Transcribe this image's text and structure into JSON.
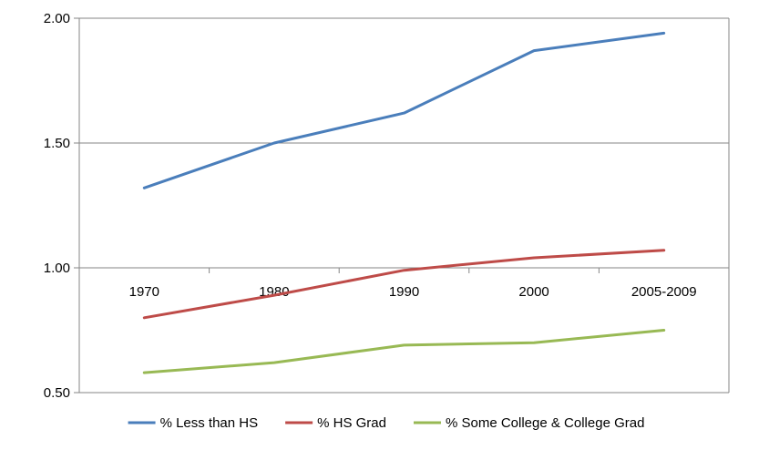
{
  "chart_data": {
    "type": "line",
    "categories": [
      "1970",
      "1980",
      "1990",
      "2000",
      "2005-2009"
    ],
    "series": [
      {
        "name": "% Less than HS",
        "color": "#4a7ebb",
        "values": [
          1.32,
          1.5,
          1.62,
          1.87,
          1.94
        ]
      },
      {
        "name": "% HS Grad",
        "color": "#be4b48",
        "values": [
          0.8,
          0.89,
          0.99,
          1.04,
          1.07
        ]
      },
      {
        "name": "% Some College & College Grad",
        "color": "#98b954",
        "values": [
          0.58,
          0.62,
          0.69,
          0.7,
          0.75
        ]
      }
    ],
    "y_ticks": [
      "0.50",
      "1.00",
      "1.50",
      "2.00"
    ],
    "ylim": [
      0.5,
      2.0
    ],
    "category_axis_at": 1.0,
    "grid": true,
    "legend_position": "bottom",
    "title": "",
    "xlabel": "",
    "ylabel": ""
  }
}
